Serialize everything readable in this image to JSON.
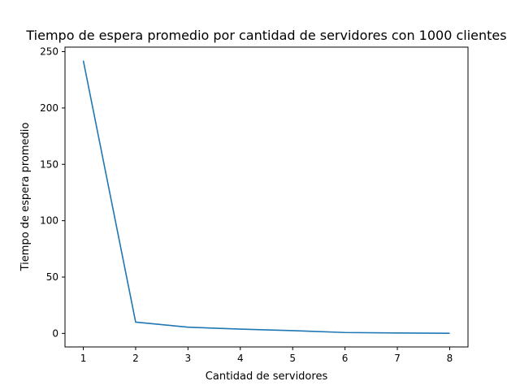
{
  "chart_data": {
    "type": "line",
    "title": "Tiempo de espera promedio por cantidad de servidores con 1000 clientes",
    "xlabel": "Cantidad de servidores",
    "ylabel": "Tiempo de espera promedio",
    "x": [
      1,
      2,
      3,
      4,
      5,
      6,
      7,
      8
    ],
    "series": [
      {
        "values": [
          242,
          10,
          5.5,
          3.8,
          2.5,
          0.8,
          0.4,
          0.1
        ],
        "color": "#1f77b4"
      }
    ],
    "xlim": [
      0.65,
      8.35
    ],
    "ylim": [
      -12,
      254
    ],
    "xticks": [
      1,
      2,
      3,
      4,
      5,
      6,
      7,
      8
    ],
    "yticks": [
      0,
      50,
      100,
      150,
      200,
      250
    ],
    "grid": false,
    "legend": "none"
  }
}
